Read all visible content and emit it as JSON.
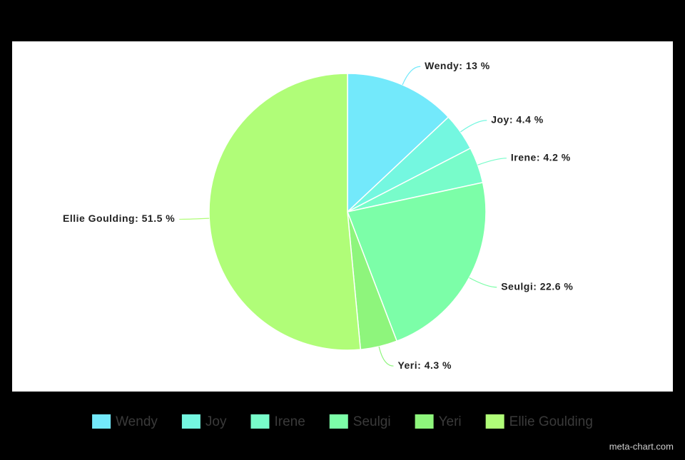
{
  "chart_data": {
    "type": "pie",
    "categories": [
      "Wendy",
      "Joy",
      "Irene",
      "Seulgi",
      "Yeri",
      "Ellie Goulding"
    ],
    "values": [
      13,
      4.4,
      4.2,
      22.6,
      4.3,
      51.5
    ],
    "value_labels": [
      "Wendy: 13 %",
      "Joy: 4.4 %",
      "Irene: 4.2 %",
      "Seulgi: 22.6 %",
      "Yeri: 4.3 %",
      "Ellie Goulding: 51.5 %"
    ],
    "colors": [
      "#73e9fb",
      "#74f7e0",
      "#78fcca",
      "#7cfea8",
      "#8ef57c",
      "#b0fd78"
    ],
    "legend": "bottom",
    "watermark": "meta-chart.com"
  }
}
